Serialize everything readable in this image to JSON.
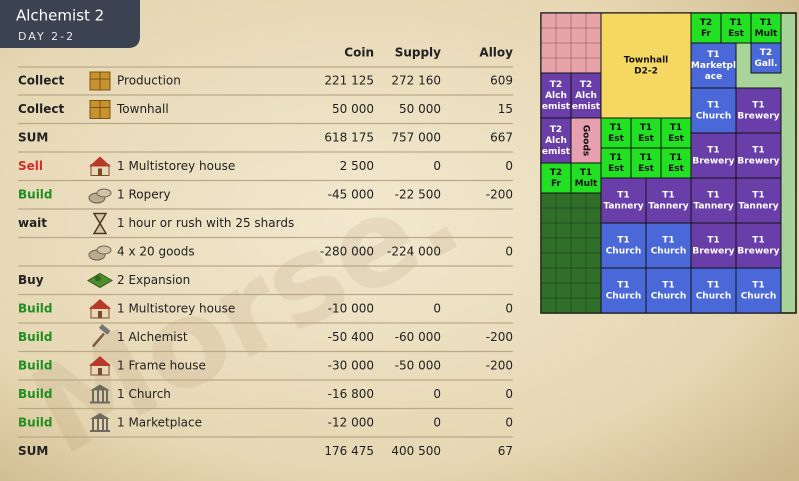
{
  "header": {
    "title": "Alchemist 2",
    "subtitle": "DAY 2-2"
  },
  "watermark": "Morse.",
  "table": {
    "columns": [
      "Coin",
      "Supply",
      "Alloy"
    ],
    "rows": [
      {
        "action": "Collect",
        "action_color": "#222222",
        "item": "Production",
        "values": [
          "221 125",
          "272 160",
          "609"
        ]
      },
      {
        "action": "Collect",
        "action_color": "#222222",
        "item": "Townhall",
        "values": [
          "50 000",
          "50 000",
          "15"
        ]
      },
      {
        "action": "SUM",
        "action_color": "#222222",
        "values": [
          "618 175",
          "757 000",
          "667"
        ]
      },
      {
        "action": "Sell",
        "action_color": "#d42a2a",
        "item": "1 Multistorey house",
        "values": [
          "2 500",
          "0",
          "0"
        ]
      },
      {
        "action": "Build",
        "action_color": "#1f8f1f",
        "item": "1 Ropery",
        "values": [
          "-45 000",
          "-22 500",
          "-200"
        ]
      },
      {
        "action": "wait",
        "action_color": "#222222",
        "item": "1 hour or rush with 25 shards"
      },
      {
        "item": "4 x 20 goods",
        "values": [
          "-280 000",
          "-224 000",
          "0"
        ]
      },
      {
        "action": "Buy",
        "action_color": "#222222",
        "item": "2 Expansion"
      },
      {
        "action": "Build",
        "action_color": "#1f8f1f",
        "item": "1 Multistorey house",
        "values": [
          "-10 000",
          "0",
          "0"
        ]
      },
      {
        "action": "Build",
        "action_color": "#1f8f1f",
        "item": "1 Alchemist",
        "values": [
          "-50 400",
          "-60 000",
          "-200"
        ]
      },
      {
        "action": "Build",
        "action_color": "#1f8f1f",
        "item": "1 Frame house",
        "values": [
          "-30 000",
          "-50 000",
          "-200"
        ]
      },
      {
        "action": "Build",
        "action_color": "#1f8f1f",
        "item": "1 Church",
        "values": [
          "-16 800",
          "0",
          "0"
        ]
      },
      {
        "action": "Build",
        "action_color": "#1f8f1f",
        "item": "1 Marketplace",
        "values": [
          "-12 000",
          "0",
          "0"
        ]
      },
      {
        "action": "SUM",
        "action_color": "#222222",
        "values": [
          "176 475",
          "400 500",
          "67"
        ]
      }
    ]
  },
  "map": {
    "buildings": [
      {
        "lines": [
          "Townhall",
          "D2-2"
        ],
        "color": "#f5d862"
      },
      {
        "lines": [
          "T2",
          "Fr"
        ],
        "color": "#22e022"
      },
      {
        "lines": [
          "T1",
          "Est"
        ],
        "color": "#22e022"
      },
      {
        "lines": [
          "T1",
          "Mult"
        ],
        "color": "#22e022"
      },
      {
        "lines": [
          "T1",
          "Marketpl",
          "ace"
        ],
        "color": "#4a68d8"
      },
      {
        "lines": [
          "T2",
          "Gall."
        ],
        "color": "#4a68d8"
      },
      {
        "lines": [
          "T1",
          "Church"
        ],
        "color": "#4a68d8"
      },
      {
        "lines": [
          "T1",
          "Brewery"
        ],
        "color": "#6a3ea8"
      },
      {
        "lines": [
          "T2",
          "Alch",
          "emist"
        ],
        "color": "#6a3ea8"
      },
      {
        "lines": [
          "T2",
          "Alch",
          "emist"
        ],
        "color": "#6a3ea8"
      },
      {
        "lines": [
          "T2",
          "Alch",
          "emist"
        ],
        "color": "#6a3ea8"
      },
      {
        "lines": [
          "Goods"
        ],
        "color": "#e6a0b0"
      },
      {
        "lines": [
          "T1",
          "Est"
        ],
        "color": "#22e022"
      },
      {
        "lines": [
          "T1",
          "Est"
        ],
        "color": "#22e022"
      },
      {
        "lines": [
          "T1",
          "Est"
        ],
        "color": "#22e022"
      },
      {
        "lines": [
          "T1",
          "Est"
        ],
        "color": "#22e022"
      },
      {
        "lines": [
          "T1",
          "Est"
        ],
        "color": "#22e022"
      },
      {
        "lines": [
          "T1",
          "Est"
        ],
        "color": "#22e022"
      },
      {
        "lines": [
          "T1",
          "Brewery"
        ],
        "color": "#6a3ea8"
      },
      {
        "lines": [
          "T1",
          "Brewery"
        ],
        "color": "#6a3ea8"
      },
      {
        "lines": [
          "T2",
          "Fr"
        ],
        "color": "#22e022"
      },
      {
        "lines": [
          "T1",
          "Mult"
        ],
        "color": "#22e022"
      },
      {
        "lines": [
          "T1",
          "Tannery"
        ],
        "color": "#6a3ea8"
      },
      {
        "lines": [
          "T1",
          "Tannery"
        ],
        "color": "#6a3ea8"
      },
      {
        "lines": [
          "T1",
          "Tannery"
        ],
        "color": "#6a3ea8"
      },
      {
        "lines": [
          "T1",
          "Tannery"
        ],
        "color": "#6a3ea8"
      },
      {
        "lines": [
          "T1",
          "Church"
        ],
        "color": "#4a68d8"
      },
      {
        "lines": [
          "T1",
          "Church"
        ],
        "color": "#4a68d8"
      },
      {
        "lines": [
          "T1",
          "Brewery"
        ],
        "color": "#6a3ea8"
      },
      {
        "lines": [
          "T1",
          "Brewery"
        ],
        "color": "#6a3ea8"
      },
      {
        "lines": [
          "T1",
          "Church"
        ],
        "color": "#4a68d8"
      },
      {
        "lines": [
          "T1",
          "Church"
        ],
        "color": "#4a68d8"
      },
      {
        "lines": [
          "T1",
          "Church"
        ],
        "color": "#4a68d8"
      },
      {
        "lines": [
          "T1",
          "Church"
        ],
        "color": "#4a68d8"
      }
    ]
  }
}
